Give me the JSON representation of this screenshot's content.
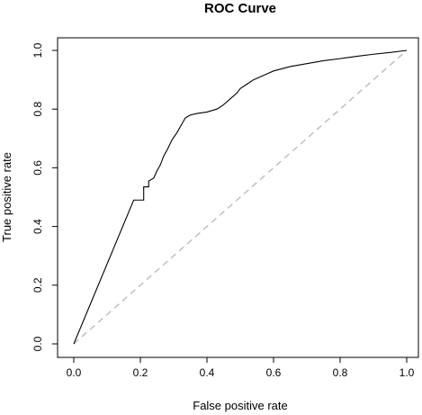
{
  "chart_data": {
    "type": "line",
    "title": "ROC Curve",
    "xlabel": "False positive rate",
    "ylabel": "True positive rate",
    "xlim": [
      0,
      1
    ],
    "ylim": [
      0,
      1
    ],
    "x_ticks": [
      "0.0",
      "0.2",
      "0.4",
      "0.6",
      "0.8",
      "1.0"
    ],
    "y_ticks": [
      "0.0",
      "0.2",
      "0.4",
      "0.6",
      "0.8",
      "1.0"
    ],
    "grid": false,
    "series": [
      {
        "style": "solid",
        "color": "#000000",
        "points": [
          [
            0.0,
            0.0
          ],
          [
            0.18,
            0.49
          ],
          [
            0.21,
            0.49
          ],
          [
            0.21,
            0.535
          ],
          [
            0.225,
            0.535
          ],
          [
            0.225,
            0.555
          ],
          [
            0.24,
            0.565
          ],
          [
            0.25,
            0.59
          ],
          [
            0.26,
            0.61
          ],
          [
            0.27,
            0.64
          ],
          [
            0.28,
            0.66
          ],
          [
            0.295,
            0.695
          ],
          [
            0.31,
            0.72
          ],
          [
            0.325,
            0.75
          ],
          [
            0.335,
            0.77
          ],
          [
            0.35,
            0.78
          ],
          [
            0.37,
            0.785
          ],
          [
            0.4,
            0.79
          ],
          [
            0.43,
            0.8
          ],
          [
            0.45,
            0.815
          ],
          [
            0.47,
            0.835
          ],
          [
            0.49,
            0.855
          ],
          [
            0.5,
            0.87
          ],
          [
            0.52,
            0.885
          ],
          [
            0.54,
            0.9
          ],
          [
            0.56,
            0.91
          ],
          [
            0.58,
            0.92
          ],
          [
            0.6,
            0.93
          ],
          [
            0.65,
            0.945
          ],
          [
            0.7,
            0.955
          ],
          [
            0.75,
            0.965
          ],
          [
            0.8,
            0.972
          ],
          [
            0.85,
            0.98
          ],
          [
            0.9,
            0.987
          ],
          [
            0.95,
            0.993
          ],
          [
            1.0,
            1.0
          ]
        ]
      },
      {
        "style": "dashed",
        "color": "#bfbfbf",
        "points": [
          [
            0,
            0
          ],
          [
            1,
            1
          ]
        ]
      }
    ]
  }
}
